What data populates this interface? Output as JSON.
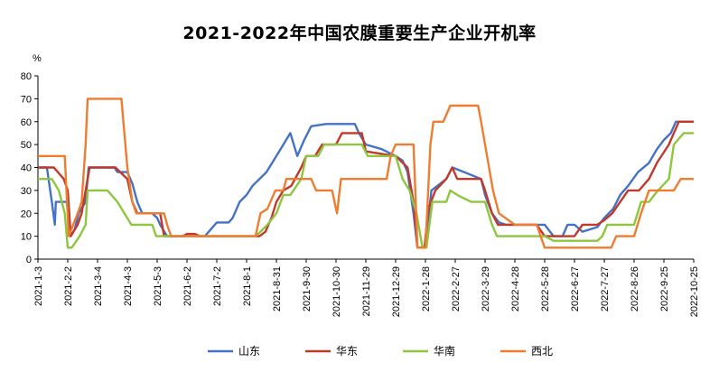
{
  "chart_data": {
    "type": "line",
    "title": "2021-2022年中国农膜重要生产企业开机率",
    "ylabel": "%",
    "ylim": [
      0,
      80
    ],
    "yticks": [
      0,
      10,
      20,
      30,
      40,
      50,
      60,
      70,
      80
    ],
    "xlim": [
      "2021-01-03",
      "2022-10-25"
    ],
    "xticks": [
      "2021-1-3",
      "2021-2-2",
      "2021-3-4",
      "2021-4-3",
      "2021-5-3",
      "2021-6-2",
      "2021-7-2",
      "2021-8-1",
      "2021-8-31",
      "2021-9-30",
      "2021-10-30",
      "2021-11-29",
      "2021-12-29",
      "2022-1-28",
      "2022-2-27",
      "2022-3-29",
      "2022-4-28",
      "2022-5-28",
      "2022-6-27",
      "2022-7-27",
      "2022-8-26",
      "2022-9-25",
      "2022-10-25"
    ],
    "grid": false,
    "legend_position": "bottom",
    "series": [
      {
        "name": "山东",
        "color": "#4472C4",
        "points": [
          [
            "2021-01-03",
            40
          ],
          [
            "2021-01-12",
            40
          ],
          [
            "2021-01-17",
            25
          ],
          [
            "2021-01-20",
            15
          ],
          [
            "2021-01-21",
            25
          ],
          [
            "2021-01-25",
            25
          ],
          [
            "2021-02-01",
            25
          ],
          [
            "2021-02-05",
            10
          ],
          [
            "2021-02-09",
            13
          ],
          [
            "2021-02-13",
            20
          ],
          [
            "2021-02-20",
            25
          ],
          [
            "2021-02-23",
            40
          ],
          [
            "2021-03-21",
            40
          ],
          [
            "2021-03-24",
            38
          ],
          [
            "2021-04-03",
            38
          ],
          [
            "2021-04-08",
            33
          ],
          [
            "2021-04-13",
            25
          ],
          [
            "2021-04-18",
            20
          ],
          [
            "2021-04-28",
            20
          ],
          [
            "2021-05-03",
            18
          ],
          [
            "2021-05-06",
            15
          ],
          [
            "2021-05-13",
            10
          ],
          [
            "2021-06-15",
            10
          ],
          [
            "2021-06-20",
            10
          ],
          [
            "2021-07-02",
            16
          ],
          [
            "2021-07-14",
            16
          ],
          [
            "2021-07-18",
            18
          ],
          [
            "2021-07-25",
            25
          ],
          [
            "2021-08-01",
            28
          ],
          [
            "2021-08-07",
            32
          ],
          [
            "2021-08-14",
            35
          ],
          [
            "2021-08-21",
            38
          ],
          [
            "2021-08-31",
            45
          ],
          [
            "2021-09-07",
            50
          ],
          [
            "2021-09-14",
            55
          ],
          [
            "2021-09-21",
            45
          ],
          [
            "2021-09-28",
            52
          ],
          [
            "2021-10-05",
            58
          ],
          [
            "2021-10-20",
            59
          ],
          [
            "2021-11-18",
            59
          ],
          [
            "2021-11-22",
            55
          ],
          [
            "2021-11-29",
            50
          ],
          [
            "2021-12-15",
            48
          ],
          [
            "2021-12-29",
            45
          ],
          [
            "2022-01-05",
            43
          ],
          [
            "2022-01-10",
            38
          ],
          [
            "2022-01-16",
            20
          ],
          [
            "2022-01-20",
            5
          ],
          [
            "2022-01-28",
            5
          ],
          [
            "2022-02-03",
            30
          ],
          [
            "2022-02-18",
            35
          ],
          [
            "2022-02-24",
            40
          ],
          [
            "2022-03-08",
            38
          ],
          [
            "2022-03-25",
            35
          ],
          [
            "2022-03-29",
            28
          ],
          [
            "2022-04-05",
            20
          ],
          [
            "2022-04-12",
            16
          ],
          [
            "2022-04-19",
            15
          ],
          [
            "2022-05-14",
            15
          ],
          [
            "2022-05-28",
            15
          ],
          [
            "2022-06-06",
            10
          ],
          [
            "2022-06-15",
            10
          ],
          [
            "2022-06-20",
            15
          ],
          [
            "2022-06-27",
            15
          ],
          [
            "2022-07-05",
            12
          ],
          [
            "2022-07-20",
            14
          ],
          [
            "2022-07-27",
            18
          ],
          [
            "2022-08-05",
            22
          ],
          [
            "2022-08-12",
            28
          ],
          [
            "2022-08-20",
            32
          ],
          [
            "2022-08-30",
            38
          ],
          [
            "2022-09-10",
            42
          ],
          [
            "2022-09-18",
            48
          ],
          [
            "2022-09-25",
            52
          ],
          [
            "2022-10-02",
            55
          ],
          [
            "2022-10-07",
            60
          ],
          [
            "2022-10-25",
            60
          ]
        ]
      },
      {
        "name": "华东",
        "color": "#C0392B",
        "points": [
          [
            "2021-01-03",
            40
          ],
          [
            "2021-01-19",
            40
          ],
          [
            "2021-01-29",
            35
          ],
          [
            "2021-02-02",
            30
          ],
          [
            "2021-02-05",
            10
          ],
          [
            "2021-02-12",
            15
          ],
          [
            "2021-02-16",
            20
          ],
          [
            "2021-02-20",
            30
          ],
          [
            "2021-02-24",
            40
          ],
          [
            "2021-03-22",
            40
          ],
          [
            "2021-04-03",
            35
          ],
          [
            "2021-04-08",
            25
          ],
          [
            "2021-04-13",
            20
          ],
          [
            "2021-05-06",
            20
          ],
          [
            "2021-05-10",
            10
          ],
          [
            "2021-05-29",
            10
          ],
          [
            "2021-06-02",
            11
          ],
          [
            "2021-06-10",
            11
          ],
          [
            "2021-06-15",
            10
          ],
          [
            "2021-08-14",
            10
          ],
          [
            "2021-08-20",
            12
          ],
          [
            "2021-08-26",
            18
          ],
          [
            "2021-08-31",
            25
          ],
          [
            "2021-09-07",
            30
          ],
          [
            "2021-09-15",
            32
          ],
          [
            "2021-09-25",
            40
          ],
          [
            "2021-09-30",
            45
          ],
          [
            "2021-10-09",
            45
          ],
          [
            "2021-10-16",
            50
          ],
          [
            "2021-10-30",
            50
          ],
          [
            "2021-11-05",
            55
          ],
          [
            "2021-11-25",
            55
          ],
          [
            "2021-11-29",
            47
          ],
          [
            "2021-12-29",
            45
          ],
          [
            "2022-01-10",
            40
          ],
          [
            "2022-01-16",
            25
          ],
          [
            "2022-01-20",
            5
          ],
          [
            "2022-01-27",
            5
          ],
          [
            "2022-01-31",
            22
          ],
          [
            "2022-02-07",
            30
          ],
          [
            "2022-02-18",
            35
          ],
          [
            "2022-02-24",
            40
          ],
          [
            "2022-03-01",
            35
          ],
          [
            "2022-03-08",
            35
          ],
          [
            "2022-03-25",
            35
          ],
          [
            "2022-03-29",
            30
          ],
          [
            "2022-04-05",
            20
          ],
          [
            "2022-04-11",
            15
          ],
          [
            "2022-05-20",
            15
          ],
          [
            "2022-05-28",
            10
          ],
          [
            "2022-06-27",
            10
          ],
          [
            "2022-07-05",
            15
          ],
          [
            "2022-07-20",
            15
          ],
          [
            "2022-07-27",
            17
          ],
          [
            "2022-08-04",
            20
          ],
          [
            "2022-08-12",
            25
          ],
          [
            "2022-08-20",
            30
          ],
          [
            "2022-08-31",
            30
          ],
          [
            "2022-09-10",
            35
          ],
          [
            "2022-09-18",
            42
          ],
          [
            "2022-09-30",
            50
          ],
          [
            "2022-10-10",
            60
          ],
          [
            "2022-10-25",
            60
          ]
        ]
      },
      {
        "name": "华南",
        "color": "#8DC63F",
        "points": [
          [
            "2021-01-03",
            35
          ],
          [
            "2021-01-17",
            35
          ],
          [
            "2021-01-24",
            30
          ],
          [
            "2021-01-30",
            20
          ],
          [
            "2021-02-02",
            5
          ],
          [
            "2021-02-06",
            5
          ],
          [
            "2021-02-14",
            10
          ],
          [
            "2021-02-20",
            15
          ],
          [
            "2021-02-22",
            30
          ],
          [
            "2021-03-14",
            30
          ],
          [
            "2021-03-24",
            25
          ],
          [
            "2021-03-31",
            20
          ],
          [
            "2021-04-07",
            15
          ],
          [
            "2021-04-28",
            15
          ],
          [
            "2021-05-02",
            10
          ],
          [
            "2021-06-02",
            10
          ],
          [
            "2021-08-10",
            10
          ],
          [
            "2021-08-15",
            12
          ],
          [
            "2021-08-22",
            15
          ],
          [
            "2021-08-31",
            20
          ],
          [
            "2021-09-07",
            28
          ],
          [
            "2021-09-14",
            28
          ],
          [
            "2021-09-25",
            35
          ],
          [
            "2021-09-30",
            45
          ],
          [
            "2021-10-12",
            45
          ],
          [
            "2021-10-18",
            50
          ],
          [
            "2021-11-25",
            50
          ],
          [
            "2021-12-01",
            45
          ],
          [
            "2021-12-29",
            45
          ],
          [
            "2022-01-05",
            35
          ],
          [
            "2022-01-12",
            30
          ],
          [
            "2022-01-19",
            20
          ],
          [
            "2022-01-25",
            5
          ],
          [
            "2022-01-29",
            5
          ],
          [
            "2022-02-04",
            25
          ],
          [
            "2022-02-18",
            25
          ],
          [
            "2022-02-22",
            30
          ],
          [
            "2022-03-01",
            28
          ],
          [
            "2022-03-15",
            25
          ],
          [
            "2022-03-29",
            25
          ],
          [
            "2022-04-05",
            15
          ],
          [
            "2022-04-10",
            10
          ],
          [
            "2022-05-28",
            10
          ],
          [
            "2022-06-06",
            8
          ],
          [
            "2022-07-20",
            8
          ],
          [
            "2022-07-25",
            10
          ],
          [
            "2022-07-30",
            15
          ],
          [
            "2022-08-26",
            15
          ],
          [
            "2022-09-02",
            25
          ],
          [
            "2022-09-10",
            25
          ],
          [
            "2022-09-19",
            30
          ],
          [
            "2022-09-30",
            35
          ],
          [
            "2022-10-05",
            50
          ],
          [
            "2022-10-15",
            55
          ],
          [
            "2022-10-25",
            55
          ]
        ]
      },
      {
        "name": "西北",
        "color": "#ED7D31",
        "points": [
          [
            "2021-01-03",
            45
          ],
          [
            "2021-01-30",
            45
          ],
          [
            "2021-02-03",
            10
          ],
          [
            "2021-02-12",
            20
          ],
          [
            "2021-02-16",
            25
          ],
          [
            "2021-02-20",
            50
          ],
          [
            "2021-02-22",
            70
          ],
          [
            "2021-03-28",
            70
          ],
          [
            "2021-04-03",
            40
          ],
          [
            "2021-04-08",
            25
          ],
          [
            "2021-04-12",
            20
          ],
          [
            "2021-05-10",
            20
          ],
          [
            "2021-05-13",
            15
          ],
          [
            "2021-05-17",
            10
          ],
          [
            "2021-08-10",
            10
          ],
          [
            "2021-08-15",
            20
          ],
          [
            "2021-08-22",
            22
          ],
          [
            "2021-08-30",
            30
          ],
          [
            "2021-09-07",
            30
          ],
          [
            "2021-09-10",
            35
          ],
          [
            "2021-10-05",
            35
          ],
          [
            "2021-10-10",
            30
          ],
          [
            "2021-10-26",
            30
          ],
          [
            "2021-10-31",
            20
          ],
          [
            "2021-11-04",
            35
          ],
          [
            "2021-11-29",
            35
          ],
          [
            "2021-12-20",
            35
          ],
          [
            "2021-12-24",
            45
          ],
          [
            "2021-12-29",
            50
          ],
          [
            "2022-01-16",
            50
          ],
          [
            "2022-01-20",
            5
          ],
          [
            "2022-01-28",
            5
          ],
          [
            "2022-02-02",
            50
          ],
          [
            "2022-02-05",
            60
          ],
          [
            "2022-02-15",
            60
          ],
          [
            "2022-02-22",
            67
          ],
          [
            "2022-03-22",
            67
          ],
          [
            "2022-03-25",
            60
          ],
          [
            "2022-03-31",
            45
          ],
          [
            "2022-04-06",
            30
          ],
          [
            "2022-04-12",
            20
          ],
          [
            "2022-04-28",
            15
          ],
          [
            "2022-05-20",
            15
          ],
          [
            "2022-05-28",
            5
          ],
          [
            "2022-08-03",
            5
          ],
          [
            "2022-08-08",
            10
          ],
          [
            "2022-08-26",
            10
          ],
          [
            "2022-09-02",
            20
          ],
          [
            "2022-09-10",
            30
          ],
          [
            "2022-10-05",
            30
          ],
          [
            "2022-10-12",
            35
          ],
          [
            "2022-10-25",
            35
          ]
        ]
      }
    ]
  }
}
